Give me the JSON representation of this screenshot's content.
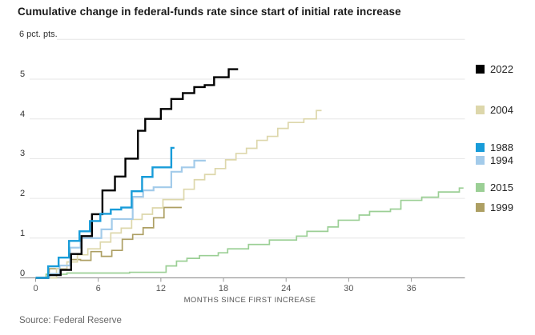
{
  "chart_data": {
    "type": "line",
    "subtype": "step",
    "title": "Cumulative change in federal-funds rate since start of initial rate increase",
    "unit_label": "6 pct. pts.",
    "xlabel": "MONTHS SINCE FIRST INCREASE",
    "ylabel": "pct. pts.",
    "xlim": [
      0,
      41.5
    ],
    "ylim": [
      0,
      6
    ],
    "x_ticks": [
      0,
      6,
      12,
      18,
      24,
      30,
      36
    ],
    "y_ticks": [
      0,
      1,
      2,
      3,
      4,
      5
    ],
    "grid": true,
    "legend_position": "right, aligned to line ends",
    "colors": {
      "grid": "#e6e6e6",
      "axis": "#9b9b9b",
      "tick": "#9b9b9b"
    },
    "series": [
      {
        "name": "2022",
        "color": "#000000",
        "width": 2.4,
        "z": 5,
        "points": [
          [
            0,
            0
          ],
          [
            1.2,
            0.07
          ],
          [
            2.4,
            0.2
          ],
          [
            3.4,
            0.6
          ],
          [
            4.4,
            1.05
          ],
          [
            5.4,
            1.6
          ],
          [
            6.4,
            2.2
          ],
          [
            7.6,
            2.55
          ],
          [
            8.6,
            3.0
          ],
          [
            9.8,
            3.7
          ],
          [
            10.5,
            4.0
          ],
          [
            12,
            4.25
          ],
          [
            13,
            4.5
          ],
          [
            14.1,
            4.65
          ],
          [
            15.2,
            4.8
          ],
          [
            16.2,
            4.85
          ],
          [
            17.1,
            5.05
          ],
          [
            18.5,
            5.25
          ],
          [
            19.4,
            5.25
          ]
        ]
      },
      {
        "name": "2004",
        "color": "#ddd7ab",
        "width": 1.7,
        "z": 3,
        "points": [
          [
            0,
            0
          ],
          [
            2,
            0.23
          ],
          [
            3,
            0.4
          ],
          [
            4,
            0.58
          ],
          [
            5,
            0.73
          ],
          [
            6.2,
            0.9
          ],
          [
            7.2,
            1.13
          ],
          [
            8.2,
            1.25
          ],
          [
            9.2,
            1.47
          ],
          [
            10.2,
            1.6
          ],
          [
            11.2,
            1.76
          ],
          [
            12.2,
            1.97
          ],
          [
            14.2,
            2.23
          ],
          [
            15.2,
            2.47
          ],
          [
            16.2,
            2.6
          ],
          [
            17.2,
            2.75
          ],
          [
            18.2,
            2.97
          ],
          [
            19.2,
            3.13
          ],
          [
            20.2,
            3.26
          ],
          [
            21.2,
            3.46
          ],
          [
            22.2,
            3.56
          ],
          [
            23.2,
            3.76
          ],
          [
            24.2,
            3.91
          ],
          [
            25.7,
            4.0
          ],
          [
            26.9,
            4.21
          ],
          [
            27.4,
            4.21
          ]
        ]
      },
      {
        "name": "1988",
        "color": "#189cd9",
        "width": 2.4,
        "z": 6,
        "points": [
          [
            0,
            0
          ],
          [
            1.2,
            0.29
          ],
          [
            2.2,
            0.51
          ],
          [
            3.2,
            0.93
          ],
          [
            4.2,
            1.17
          ],
          [
            5.2,
            1.43
          ],
          [
            6.2,
            1.61
          ],
          [
            7.2,
            1.72
          ],
          [
            8.2,
            1.77
          ],
          [
            9.2,
            2.18
          ],
          [
            10.2,
            2.54
          ],
          [
            11.2,
            2.78
          ],
          [
            13,
            3.27
          ],
          [
            13.3,
            3.27
          ]
        ]
      },
      {
        "name": "1994",
        "color": "#a3cbea",
        "width": 2.2,
        "z": 4,
        "points": [
          [
            0,
            0
          ],
          [
            1.3,
            0.1
          ],
          [
            2.3,
            0.31
          ],
          [
            3.3,
            0.76
          ],
          [
            4.3,
            1.0
          ],
          [
            6.3,
            1.22
          ],
          [
            7.3,
            1.48
          ],
          [
            9.3,
            2.04
          ],
          [
            10.3,
            2.2
          ],
          [
            11.3,
            2.28
          ],
          [
            13,
            2.67
          ],
          [
            14,
            2.78
          ],
          [
            15.2,
            2.95
          ],
          [
            16.3,
            2.95
          ]
        ]
      },
      {
        "name": "2015",
        "color": "#9bcf95",
        "width": 1.7,
        "z": 1,
        "points": [
          [
            0,
            0
          ],
          [
            1,
            0.09
          ],
          [
            3,
            0.12
          ],
          [
            9,
            0.14
          ],
          [
            12.5,
            0.3
          ],
          [
            13.5,
            0.42
          ],
          [
            14.5,
            0.49
          ],
          [
            15.7,
            0.56
          ],
          [
            17.5,
            0.63
          ],
          [
            18.4,
            0.73
          ],
          [
            20.4,
            0.84
          ],
          [
            22.4,
            0.95
          ],
          [
            25,
            1.05
          ],
          [
            26,
            1.17
          ],
          [
            28,
            1.28
          ],
          [
            29,
            1.45
          ],
          [
            31,
            1.58
          ],
          [
            32,
            1.67
          ],
          [
            34,
            1.73
          ],
          [
            35,
            1.95
          ],
          [
            37,
            2.03
          ],
          [
            38.6,
            2.16
          ],
          [
            40.6,
            2.26
          ],
          [
            41,
            2.26
          ]
        ]
      },
      {
        "name": "1999",
        "color": "#ad9f63",
        "width": 1.7,
        "z": 2,
        "points": [
          [
            0,
            0
          ],
          [
            1.3,
            0.23
          ],
          [
            2.3,
            0.31
          ],
          [
            3.3,
            0.46
          ],
          [
            4.3,
            0.44
          ],
          [
            5.3,
            0.66
          ],
          [
            6.3,
            0.54
          ],
          [
            7.3,
            0.69
          ],
          [
            8.3,
            0.97
          ],
          [
            9.3,
            1.09
          ],
          [
            10.3,
            1.26
          ],
          [
            11.3,
            1.51
          ],
          [
            12.3,
            1.77
          ],
          [
            14,
            1.77
          ]
        ]
      }
    ]
  },
  "footer": {
    "source": "Source: Federal Reserve"
  }
}
